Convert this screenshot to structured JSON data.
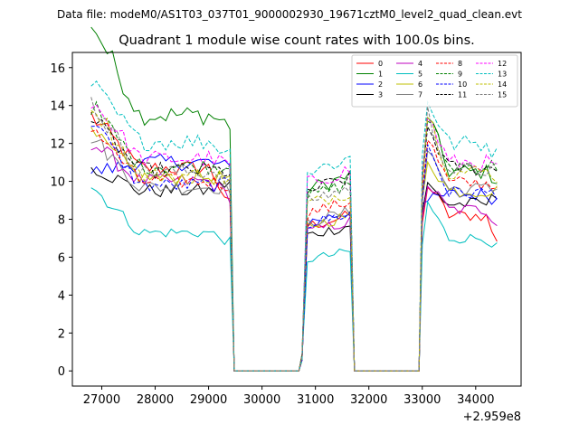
{
  "chart_data": {
    "type": "line",
    "suptitle": "Data file: modeM0/AS1T03_037T01_9000002930_19671cztM0_level2_quad_clean.evt",
    "title": "Quadrant 1 module wise count rates with 100.0s bins.",
    "xlabel": "",
    "ylabel": "",
    "x_offset_text": "+2.959e8",
    "xlim": [
      26450,
      34850
    ],
    "ylim": [
      -0.8,
      16.8
    ],
    "xticks": [
      27000,
      28000,
      29000,
      30000,
      31000,
      32000,
      33000,
      34000
    ],
    "xtick_labels": [
      "27000",
      "28000",
      "29000",
      "30000",
      "31000",
      "32000",
      "33000",
      "34000"
    ],
    "yticks": [
      0,
      2,
      4,
      6,
      8,
      10,
      12,
      14,
      16
    ],
    "ytick_labels": [
      "0",
      "2",
      "4",
      "6",
      "8",
      "10",
      "12",
      "14",
      "16"
    ],
    "legend_position": "top-right",
    "series": [
      {
        "name": "0",
        "color": "#ff0000",
        "dash": "solid",
        "level": [
          10.7,
          7.8,
          8.2
        ],
        "start": 1.26,
        "end": 0.82
      },
      {
        "name": "1",
        "color": "#008000",
        "dash": "solid",
        "level": [
          13.5,
          9.8,
          10.5
        ],
        "start": 1.37,
        "end": 0.96
      },
      {
        "name": "2",
        "color": "#0000ff",
        "dash": "solid",
        "level": [
          11.0,
          8.0,
          9.3
        ],
        "start": 0.95,
        "end": 0.97
      },
      {
        "name": "3",
        "color": "#000000",
        "dash": "solid",
        "level": [
          9.5,
          7.3,
          8.8
        ],
        "start": 1.14,
        "end": 1.05
      },
      {
        "name": "4",
        "color": "#bf00bf",
        "dash": "solid",
        "level": [
          10.0,
          7.5,
          8.5
        ],
        "start": 1.21,
        "end": 0.92
      },
      {
        "name": "5",
        "color": "#00bfbf",
        "dash": "solid",
        "level": [
          7.3,
          6.0,
          7.0
        ],
        "start": 1.34,
        "end": 0.93
      },
      {
        "name": "6",
        "color": "#bfbf00",
        "dash": "solid",
        "level": [
          10.2,
          7.8,
          9.5
        ],
        "start": 1.23,
        "end": 1.0
      },
      {
        "name": "7",
        "color": "#808080",
        "dash": "solid",
        "level": [
          9.7,
          8.0,
          9.6
        ],
        "start": 1.28,
        "end": 1.0
      },
      {
        "name": "8",
        "color": "#ff0000",
        "dash": "dashed",
        "level": [
          10.0,
          8.5,
          9.9
        ],
        "start": 1.3,
        "end": 0.98
      },
      {
        "name": "9",
        "color": "#008000",
        "dash": "dashed",
        "level": [
          10.8,
          9.4,
          10.8
        ],
        "start": 1.3,
        "end": 1.0
      },
      {
        "name": "10",
        "color": "#0000ff",
        "dash": "dashed",
        "level": [
          9.8,
          7.9,
          9.4
        ],
        "start": 1.35,
        "end": 1.0
      },
      {
        "name": "11",
        "color": "#000000",
        "dash": "dashed",
        "level": [
          10.6,
          9.7,
          10.7
        ],
        "start": 1.26,
        "end": 0.99
      },
      {
        "name": "12",
        "color": "#ff00ff",
        "dash": "dashed",
        "level": [
          11.2,
          10.1,
          11.0
        ],
        "start": 1.28,
        "end": 0.97
      },
      {
        "name": "13",
        "color": "#00bfbf",
        "dash": "dashed",
        "level": [
          12.1,
          10.7,
          12.0
        ],
        "start": 1.25,
        "end": 0.95
      },
      {
        "name": "14",
        "color": "#bfbf00",
        "dash": "dashed",
        "level": [
          10.3,
          9.0,
          10.5
        ],
        "start": 1.38,
        "end": 0.98
      },
      {
        "name": "15",
        "color": "#808080",
        "dash": "dashed",
        "level": [
          10.5,
          9.2,
          10.6
        ],
        "start": 1.35,
        "end": 1.0
      }
    ],
    "segments": [
      {
        "x_start": 26800,
        "x_end": 29400,
        "peak_index": 1
      },
      {
        "x_start": 30750,
        "x_end": 31650,
        "peak_index": 0
      },
      {
        "x_start": 33000,
        "x_end": 34400,
        "peak_index": 1
      }
    ],
    "gap_value": 0
  }
}
